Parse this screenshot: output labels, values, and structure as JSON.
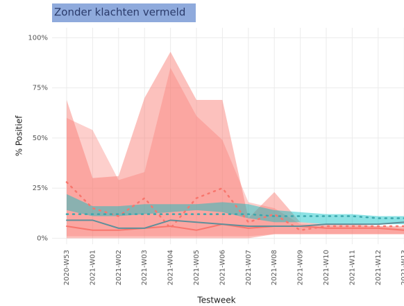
{
  "chart_data": {
    "type": "ribbon-line",
    "title": "Zonder klachten vermeld",
    "x_label": "Testweek",
    "y_label": "% Positief",
    "categories": [
      "2020-W53",
      "2021-W01",
      "2021-W02",
      "2021-W03",
      "2021-W04",
      "2021-W05",
      "2021-W06",
      "2021-W07",
      "2021-W08",
      "2021-W09",
      "2021-W10",
      "2021-W11",
      "2021-W12",
      "2021-W13"
    ],
    "ylim": [
      -3,
      105
    ],
    "yticks": [
      {
        "value": 0,
        "label": "0%"
      },
      {
        "value": 25,
        "label": "25%"
      },
      {
        "value": 50,
        "label": "50%"
      },
      {
        "value": 75,
        "label": "75%"
      },
      {
        "value": 100,
        "label": "100%"
      }
    ],
    "grid": true,
    "ribbons": [
      {
        "color": "#f8766d",
        "opacity": 0.45,
        "upper": [
          69,
          30,
          31,
          70,
          93,
          69,
          69,
          10,
          23,
          8,
          7,
          7,
          6,
          6
        ],
        "lower": [
          0,
          0,
          0,
          0,
          0,
          0,
          0,
          0,
          2,
          2,
          2,
          2,
          2,
          2
        ]
      },
      {
        "color": "#f8766d",
        "opacity": 0.35,
        "upper": [
          60,
          54,
          29,
          33,
          85,
          61,
          49,
          18,
          15,
          7,
          6,
          6,
          6,
          5
        ],
        "lower": [
          1,
          1,
          1,
          1,
          1,
          1,
          1,
          1,
          2,
          2,
          2,
          2,
          2,
          2
        ]
      },
      {
        "color": "#00bfc4",
        "opacity": 0.45,
        "upper": [
          22,
          16,
          16,
          17,
          17,
          17,
          18,
          17,
          14,
          13,
          12,
          12,
          11,
          11
        ],
        "lower": [
          14,
          11,
          11,
          12,
          13,
          14,
          13,
          10,
          8,
          8,
          7,
          7,
          7,
          7
        ]
      }
    ],
    "series": [
      {
        "color": "#f8766d",
        "dash": "solid",
        "values": [
          6,
          4,
          4,
          5,
          6,
          4,
          7,
          5,
          6,
          6,
          5,
          5,
          5,
          4
        ]
      },
      {
        "color": "#f8766d",
        "dash": "dotted",
        "values": [
          28,
          15,
          11,
          20,
          5,
          20,
          25,
          8,
          12,
          4,
          6,
          6,
          6,
          6
        ]
      },
      {
        "color": "#5f8f9a",
        "dash": "solid",
        "values": [
          9,
          9,
          5,
          5,
          9,
          8,
          7,
          6,
          6,
          6,
          7,
          7,
          7,
          8
        ]
      },
      {
        "color": "#3aa7ad",
        "dash": "dotted",
        "values": [
          12,
          12,
          12,
          12,
          12,
          12,
          12,
          12,
          11,
          11,
          11,
          11,
          10,
          10
        ]
      }
    ]
  }
}
